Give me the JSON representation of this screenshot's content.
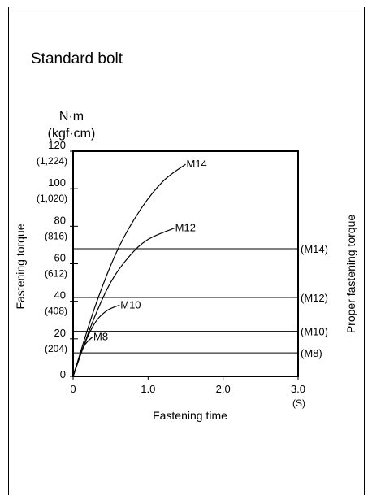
{
  "page": {
    "title": "Standard bolt"
  },
  "chart_data": {
    "type": "line",
    "title": "Standard bolt",
    "xlabel": "Fastening time",
    "ylabel": "Fastening torque",
    "y2label": "Proper fastening torque",
    "y_unit": "N·m",
    "y_unit_alt": "(kgf·cm)",
    "x_unit": "(S)",
    "xlim": [
      0,
      3.0
    ],
    "ylim": [
      0,
      120
    ],
    "x_ticks": [
      "0",
      "1.0",
      "2.0",
      "3.0"
    ],
    "x_tick_values": [
      0,
      1.0,
      2.0,
      3.0
    ],
    "y_ticks": [
      {
        "value": 0,
        "label": "0",
        "alt": ""
      },
      {
        "value": 20,
        "label": "20",
        "alt": "(204)"
      },
      {
        "value": 40,
        "label": "40",
        "alt": "(408)"
      },
      {
        "value": 60,
        "label": "60",
        "alt": "(612)"
      },
      {
        "value": 80,
        "label": "80",
        "alt": "(816)"
      },
      {
        "value": 100,
        "label": "100",
        "alt": "(1,020)"
      },
      {
        "value": 120,
        "label": "120",
        "alt": "(1,224)"
      }
    ],
    "series": [
      {
        "name": "M14",
        "x": [
          0,
          0.3,
          0.6,
          0.9,
          1.2,
          1.5
        ],
        "y": [
          0,
          38,
          68,
          89,
          104,
          113
        ]
      },
      {
        "name": "M12",
        "x": [
          0,
          0.25,
          0.5,
          0.75,
          1.0,
          1.35
        ],
        "y": [
          0,
          28,
          50,
          64,
          73,
          79
        ]
      },
      {
        "name": "M10",
        "x": [
          0,
          0.15,
          0.3,
          0.45,
          0.62
        ],
        "y": [
          0,
          17,
          29,
          35,
          38
        ]
      },
      {
        "name": "M8",
        "x": [
          0,
          0.08,
          0.16,
          0.26
        ],
        "y": [
          0,
          10,
          17,
          21
        ]
      }
    ],
    "reference_lines": [
      {
        "name": "(M14)",
        "y": 68
      },
      {
        "name": "(M12)",
        "y": 42
      },
      {
        "name": "(M10)",
        "y": 24
      },
      {
        "name": "(M8)",
        "y": 12.5
      }
    ]
  }
}
